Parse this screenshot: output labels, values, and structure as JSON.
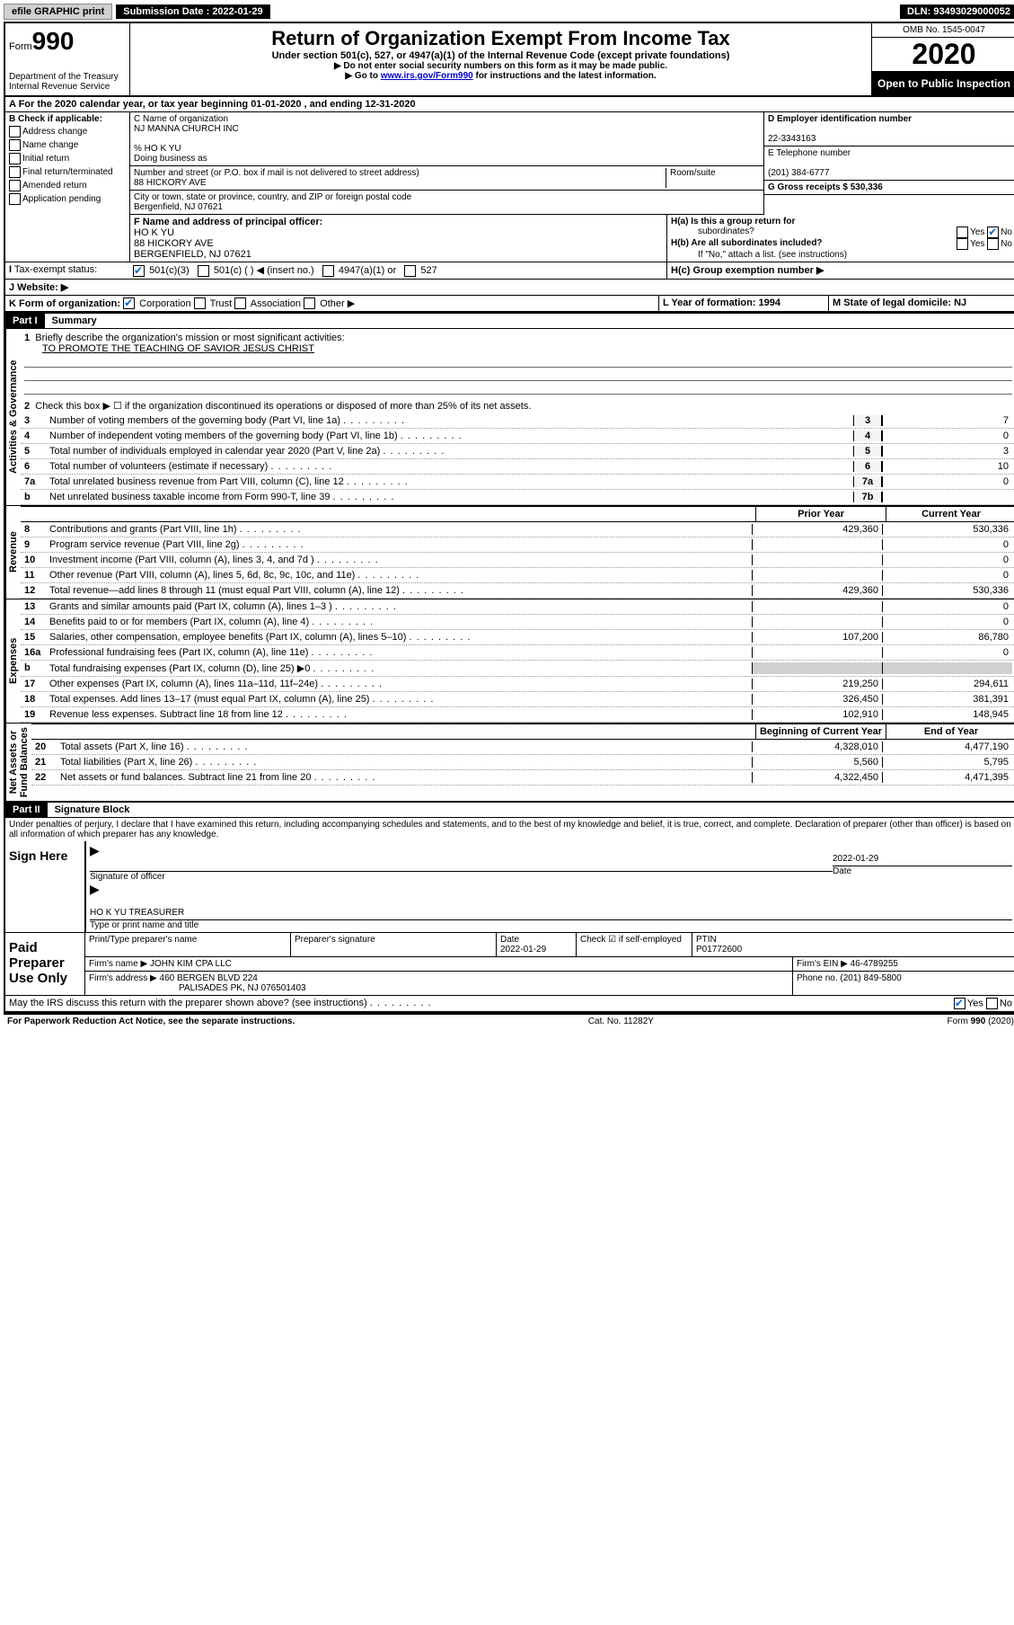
{
  "topbar": {
    "efile": "efile GRAPHIC print",
    "sub_label": "Submission Date : 2022-01-29",
    "dln": "DLN: 93493029000052"
  },
  "header": {
    "form_prefix": "Form",
    "form_num": "990",
    "dept": "Department of the Treasury\nInternal Revenue Service",
    "title": "Return of Organization Exempt From Income Tax",
    "sub": "Under section 501(c), 527, or 4947(a)(1) of the Internal Revenue Code (except private foundations)",
    "note1": "▶ Do not enter social security numbers on this form as it may be made public.",
    "note2_pre": "▶ Go to ",
    "note2_link": "www.irs.gov/Form990",
    "note2_post": " for instructions and the latest information.",
    "omb": "OMB No. 1545-0047",
    "year": "2020",
    "open": "Open to Public Inspection"
  },
  "section_a": "A For the 2020 calendar year, or tax year beginning 01-01-2020    , and ending 12-31-2020",
  "col_b": {
    "label": "B Check if applicable:",
    "items": [
      "Address change",
      "Name change",
      "Initial return",
      "Final return/terminated",
      "Amended return",
      "Application pending"
    ]
  },
  "col_c": {
    "name_label": "C Name of organization",
    "name": "NJ MANNA CHURCH INC",
    "care": "% HO K YU",
    "dba": "Doing business as",
    "street_label": "Number and street (or P.O. box if mail is not delivered to street address)",
    "room": "Room/suite",
    "street": "88 HICKORY AVE",
    "city_label": "City or town, state or province, country, and ZIP or foreign postal code",
    "city": "Bergenfield, NJ  07621"
  },
  "col_d": {
    "ein_label": "D Employer identification number",
    "ein": "22-3343163",
    "phone_label": "E Telephone number",
    "phone": "(201) 384-6777",
    "gross_label": "G Gross receipts $ 530,336"
  },
  "officer": {
    "label": "F Name and address of principal officer:",
    "name": "HO K YU",
    "addr1": "88 HICKORY AVE",
    "addr2": "BERGENFIELD, NJ  07621"
  },
  "h": {
    "a": "H(a)  Is this a group return for",
    "a2": "subordinates?",
    "b": "H(b)  Are all subordinates included?",
    "note": "If \"No,\" attach a list. (see instructions)",
    "c": "H(c)  Group exemption number ▶"
  },
  "tax_status": "Tax-exempt status:",
  "status_opts": [
    "501(c)(3)",
    "501(c) (  ) ◀ (insert no.)",
    "4947(a)(1) or",
    "527"
  ],
  "website": "J   Website: ▶",
  "k": "K Form of organization:",
  "k_opts": [
    "Corporation",
    "Trust",
    "Association",
    "Other ▶"
  ],
  "l": "L Year of formation: 1994",
  "m": "M State of legal domicile: NJ",
  "part1": {
    "head": "Part I",
    "title": "Summary",
    "q1": "Briefly describe the organization's mission or most significant activities:",
    "mission": "TO PROMOTE THE TEACHING OF SAVIOR JESUS CHRIST",
    "q2": "Check this box ▶ ☐  if the organization discontinued its operations or disposed of more than 25% of its net assets.",
    "lines": [
      {
        "n": "3",
        "t": "Number of voting members of the governing body (Part VI, line 1a)",
        "box": "3",
        "v": "7"
      },
      {
        "n": "4",
        "t": "Number of independent voting members of the governing body (Part VI, line 1b)",
        "box": "4",
        "v": "0"
      },
      {
        "n": "5",
        "t": "Total number of individuals employed in calendar year 2020 (Part V, line 2a)",
        "box": "5",
        "v": "3"
      },
      {
        "n": "6",
        "t": "Total number of volunteers (estimate if necessary)",
        "box": "6",
        "v": "10"
      },
      {
        "n": "7a",
        "t": "Total unrelated business revenue from Part VIII, column (C), line 12",
        "box": "7a",
        "v": "0"
      },
      {
        "n": "b",
        "t": "Net unrelated business taxable income from Form 990-T, line 39",
        "box": "7b",
        "v": ""
      }
    ],
    "col_heads": {
      "prior": "Prior Year",
      "current": "Current Year"
    },
    "rev": [
      {
        "n": "8",
        "t": "Contributions and grants (Part VIII, line 1h)",
        "p": "429,360",
        "c": "530,336"
      },
      {
        "n": "9",
        "t": "Program service revenue (Part VIII, line 2g)",
        "p": "",
        "c": "0"
      },
      {
        "n": "10",
        "t": "Investment income (Part VIII, column (A), lines 3, 4, and 7d )",
        "p": "",
        "c": "0"
      },
      {
        "n": "11",
        "t": "Other revenue (Part VIII, column (A), lines 5, 6d, 8c, 9c, 10c, and 11e)",
        "p": "",
        "c": "0"
      },
      {
        "n": "12",
        "t": "Total revenue—add lines 8 through 11 (must equal Part VIII, column (A), line 12)",
        "p": "429,360",
        "c": "530,336"
      }
    ],
    "exp": [
      {
        "n": "13",
        "t": "Grants and similar amounts paid (Part IX, column (A), lines 1–3 )",
        "p": "",
        "c": "0"
      },
      {
        "n": "14",
        "t": "Benefits paid to or for members (Part IX, column (A), line 4)",
        "p": "",
        "c": "0"
      },
      {
        "n": "15",
        "t": "Salaries, other compensation, employee benefits (Part IX, column (A), lines 5–10)",
        "p": "107,200",
        "c": "86,780"
      },
      {
        "n": "16a",
        "t": "Professional fundraising fees (Part IX, column (A), line 11e)",
        "p": "",
        "c": "0"
      },
      {
        "n": "b",
        "t": "Total fundraising expenses (Part IX, column (D), line 25) ▶0",
        "p": "shade",
        "c": "shade"
      },
      {
        "n": "17",
        "t": "Other expenses (Part IX, column (A), lines 11a–11d, 11f–24e)",
        "p": "219,250",
        "c": "294,611"
      },
      {
        "n": "18",
        "t": "Total expenses. Add lines 13–17 (must equal Part IX, column (A), line 25)",
        "p": "326,450",
        "c": "381,391"
      },
      {
        "n": "19",
        "t": "Revenue less expenses. Subtract line 18 from line 12",
        "p": "102,910",
        "c": "148,945"
      }
    ],
    "net_heads": {
      "beg": "Beginning of Current Year",
      "end": "End of Year"
    },
    "net": [
      {
        "n": "20",
        "t": "Total assets (Part X, line 16)",
        "p": "4,328,010",
        "c": "4,477,190"
      },
      {
        "n": "21",
        "t": "Total liabilities (Part X, line 26)",
        "p": "5,560",
        "c": "5,795"
      },
      {
        "n": "22",
        "t": "Net assets or fund balances. Subtract line 21 from line 20",
        "p": "4,322,450",
        "c": "4,471,395"
      }
    ],
    "vlabels": {
      "gov": "Activities & Governance",
      "rev": "Revenue",
      "exp": "Expenses",
      "net": "Net Assets or\nFund Balances"
    }
  },
  "part2": {
    "head": "Part II",
    "title": "Signature Block",
    "decl": "Under penalties of perjury, I declare that I have examined this return, including accompanying schedules and statements, and to the best of my knowledge and belief, it is true, correct, and complete. Declaration of preparer (other than officer) is based on all information of which preparer has any knowledge."
  },
  "sign": {
    "label": "Sign Here",
    "sig": "Signature of officer",
    "date": "2022-01-29",
    "date_label": "Date",
    "name": "HO K YU TREASURER",
    "name_label": "Type or print name and title"
  },
  "paid": {
    "label": "Paid Preparer Use Only",
    "print_label": "Print/Type preparer's name",
    "sig_label": "Preparer's signature",
    "date_label": "Date",
    "date": "2022-01-29",
    "check_label": "Check ☑ if self-employed",
    "ptin_label": "PTIN",
    "ptin": "P01772600",
    "firm_name_label": "Firm's name     ▶",
    "firm_name": "JOHN KIM CPA LLC",
    "firm_ein_label": "Firm's EIN ▶",
    "firm_ein": "46-4789255",
    "firm_addr_label": "Firm's address ▶",
    "firm_addr": "460 BERGEN BLVD 224",
    "firm_addr2": "PALISADES PK, NJ  076501403",
    "phone_label": "Phone no.",
    "phone": "(201) 849-5800"
  },
  "discuss": "May the IRS discuss this return with the preparer shown above? (see instructions)",
  "footer": {
    "left": "For Paperwork Reduction Act Notice, see the separate instructions.",
    "mid": "Cat. No. 11282Y",
    "right": "Form 990 (2020)"
  }
}
